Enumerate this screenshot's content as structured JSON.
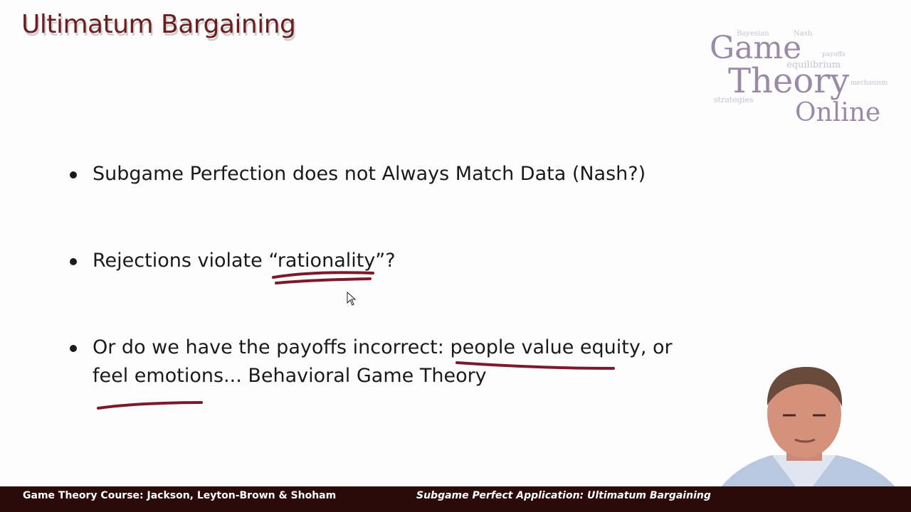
{
  "slide": {
    "title": "Ultimatum Bargaining",
    "logo": {
      "line1": "Game",
      "line2": "Theory",
      "line3": "Online",
      "cloud_words": [
        "Bayesian",
        "Nash",
        "equilibrium",
        "strategies",
        "payoffs",
        "mechanism"
      ]
    },
    "bullets": [
      {
        "text": "Subgame Perfection does not Always Match Data (Nash?)"
      },
      {
        "prefix": "Rejections violate ",
        "highlight": "“rationality”",
        "suffix": "?"
      },
      {
        "line1_prefix": "Or do we have the payoffs incorrect: ",
        "line1_highlight": "people value equity",
        "line1_suffix": ", or",
        "line2_highlight": "feel emotions...",
        "line2_suffix": " Behavioral Game Theory"
      }
    ],
    "annotation_color": "#7a1a2a"
  },
  "footer": {
    "left": "Game Theory Course: Jackson, Leyton-Brown & Shoham",
    "right": "Subgame Perfect Application: Ultimatum Bargaining"
  },
  "colors": {
    "title": "#6b1e1e",
    "footer_bg": "#2b0a0a",
    "logo": "#9a8aa6"
  }
}
